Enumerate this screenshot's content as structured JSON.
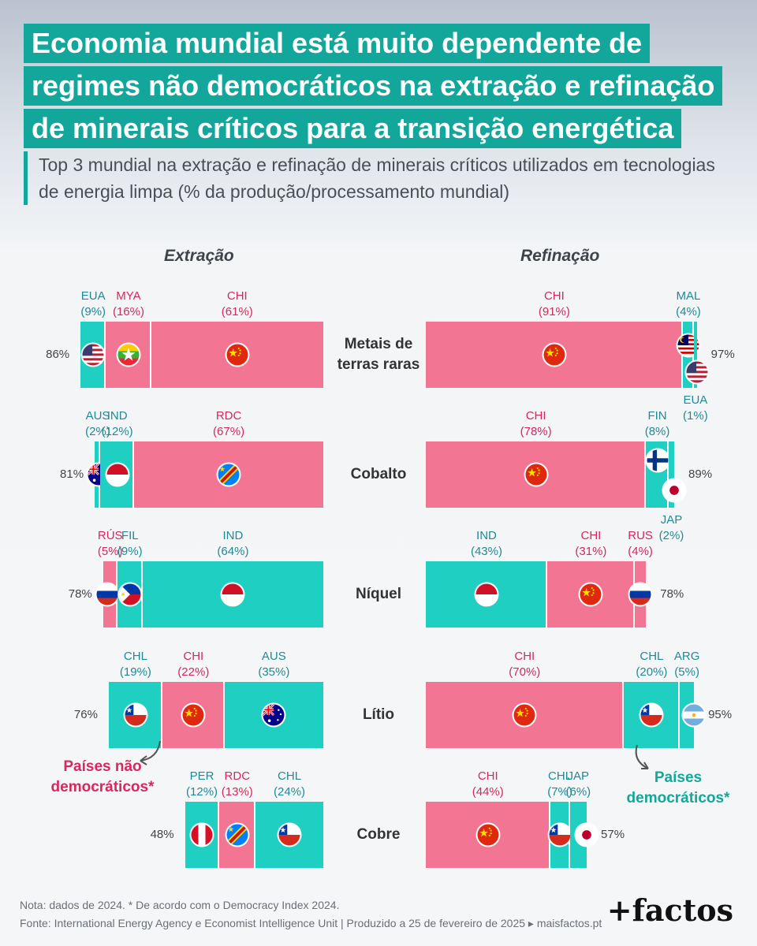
{
  "title_lines": [
    "Economia mundial está muito dependente de",
    "regimes não democráticos na extração e refinação",
    "de minerais críticos para a transição energética"
  ],
  "subtitle": "Top 3 mundial na extração e refinação de minerais críticos utilizados em tecnologias de energia limpa (% da produção/processamento mundial)",
  "colors": {
    "democratic": "#1fcfc2",
    "non_democratic": "#f27593",
    "title_bg": "#12a79a",
    "dem_text": "#1f8a96",
    "nondem_text": "#d6285d"
  },
  "chart_data": {
    "type": "bar",
    "stacked": true,
    "columns": [
      "Extração",
      "Refinação"
    ],
    "categories": [
      "Metais de terras raras",
      "Cobalto",
      "Níquel",
      "Lítio",
      "Cobre"
    ],
    "rows": [
      {
        "label": "Metais de terras raras",
        "extracao": {
          "total": "86%",
          "segments": [
            {
              "code": "EUA",
              "value": 9,
              "label": "(9%)",
              "dem": true,
              "flag": "usa-flag-icon"
            },
            {
              "code": "MYA",
              "value": 16,
              "label": "(16%)",
              "dem": false,
              "flag": "myanmar-flag-icon"
            },
            {
              "code": "CHI",
              "value": 61,
              "label": "(61%)",
              "dem": false,
              "flag": "china-flag-icon"
            }
          ]
        },
        "refinacao": {
          "total": "97%",
          "segments": [
            {
              "code": "CHI",
              "value": 91,
              "label": "(91%)",
              "dem": false,
              "flag": "china-flag-icon"
            },
            {
              "code": "MAL",
              "value": 4,
              "label": "(4%)",
              "dem": true,
              "flag": "malaysia-flag-icon"
            },
            {
              "code": "EUA",
              "value": 1,
              "label": "(1%)",
              "dem": true,
              "flag": "usa-flag-icon"
            }
          ]
        }
      },
      {
        "label": "Cobalto",
        "extracao": {
          "total": "81%",
          "segments": [
            {
              "code": "AUS",
              "value": 2,
              "label": "(2%)",
              "dem": true,
              "flag": "australia-flag-icon"
            },
            {
              "code": "IND",
              "value": 12,
              "label": "(12%)",
              "dem": true,
              "flag": "indonesia-flag-icon"
            },
            {
              "code": "RDC",
              "value": 67,
              "label": "(67%)",
              "dem": false,
              "flag": "drc-flag-icon"
            }
          ]
        },
        "refinacao": {
          "total": "89%",
          "segments": [
            {
              "code": "CHI",
              "value": 78,
              "label": "(78%)",
              "dem": false,
              "flag": "china-flag-icon"
            },
            {
              "code": "FIN",
              "value": 8,
              "label": "(8%)",
              "dem": true,
              "flag": "finland-flag-icon"
            },
            {
              "code": "JAP",
              "value": 2,
              "label": "(2%)",
              "dem": true,
              "flag": "japan-flag-icon"
            }
          ]
        }
      },
      {
        "label": "Níquel",
        "extracao": {
          "total": "78%",
          "segments": [
            {
              "code": "RÚS",
              "value": 5,
              "label": "(5%)",
              "dem": false,
              "flag": "russia-flag-icon"
            },
            {
              "code": "FIL",
              "value": 9,
              "label": "(9%)",
              "dem": true,
              "flag": "philippines-flag-icon"
            },
            {
              "code": "IND",
              "value": 64,
              "label": "(64%)",
              "dem": true,
              "flag": "indonesia-flag-icon"
            }
          ]
        },
        "refinacao": {
          "total": "78%",
          "segments": [
            {
              "code": "IND",
              "value": 43,
              "label": "(43%)",
              "dem": true,
              "flag": "indonesia-flag-icon"
            },
            {
              "code": "CHI",
              "value": 31,
              "label": "(31%)",
              "dem": false,
              "flag": "china-flag-icon"
            },
            {
              "code": "RUS",
              "value": 4,
              "label": "(4%)",
              "dem": false,
              "flag": "russia-flag-icon"
            }
          ]
        }
      },
      {
        "label": "Lítio",
        "extracao": {
          "total": "76%",
          "segments": [
            {
              "code": "CHL",
              "value": 19,
              "label": "(19%)",
              "dem": true,
              "flag": "chile-flag-icon"
            },
            {
              "code": "CHI",
              "value": 22,
              "label": "(22%)",
              "dem": false,
              "flag": "china-flag-icon"
            },
            {
              "code": "AUS",
              "value": 35,
              "label": "(35%)",
              "dem": true,
              "flag": "australia-flag-icon"
            }
          ]
        },
        "refinacao": {
          "total": "95%",
          "segments": [
            {
              "code": "CHI",
              "value": 70,
              "label": "(70%)",
              "dem": false,
              "flag": "china-flag-icon"
            },
            {
              "code": "CHL",
              "value": 20,
              "label": "(20%)",
              "dem": true,
              "flag": "chile-flag-icon"
            },
            {
              "code": "ARG",
              "value": 5,
              "label": "(5%)",
              "dem": true,
              "flag": "argentina-flag-icon"
            }
          ]
        }
      },
      {
        "label": "Cobre",
        "extracao": {
          "total": "48%",
          "segments": [
            {
              "code": "PER",
              "value": 12,
              "label": "(12%)",
              "dem": true,
              "flag": "peru-flag-icon"
            },
            {
              "code": "RDC",
              "value": 13,
              "label": "(13%)",
              "dem": false,
              "flag": "drc-flag-icon"
            },
            {
              "code": "CHL",
              "value": 24,
              "label": "(24%)",
              "dem": true,
              "flag": "chile-flag-icon"
            }
          ]
        },
        "refinacao": {
          "total": "57%",
          "segments": [
            {
              "code": "CHI",
              "value": 44,
              "label": "(44%)",
              "dem": false,
              "flag": "china-flag-icon"
            },
            {
              "code": "CHL",
              "value": 7,
              "label": "(7%)",
              "dem": true,
              "flag": "chile-flag-icon"
            },
            {
              "code": "JAP",
              "value": 6,
              "label": "(6%)",
              "dem": true,
              "flag": "japan-flag-icon"
            }
          ]
        }
      }
    ]
  },
  "legend": {
    "non_democratic": "Países não democráticos*",
    "democratic": "Países democráticos*"
  },
  "footer": {
    "note": "Nota: dados de 2024. * De acordo com o Democracy Index 2024.",
    "source": "Fonte: International Energy Agency e Economist Intelligence Unit  |  Produzido a 25 de fevereiro de 2025 ▸ maisfactos.pt"
  },
  "brand": "+factos"
}
